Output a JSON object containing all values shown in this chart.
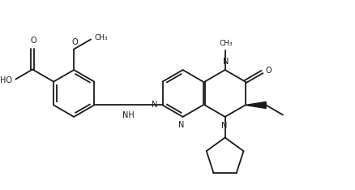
{
  "bg": "#ffffff",
  "lc": "#1a1a1a",
  "lw": 1.3,
  "fs": 7.0,
  "fig_w": 4.38,
  "fig_h": 2.34,
  "dpi": 100,
  "xlim": [
    -2,
    102
  ],
  "ylim": [
    -2,
    56
  ]
}
